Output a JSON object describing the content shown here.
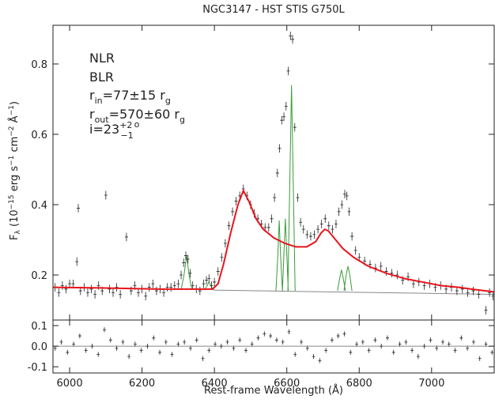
{
  "chart_data": [
    {
      "type": "line",
      "title": "NGC3147 - HST STIS G750L",
      "ylabel": {
        "parts": [
          "F",
          "λ",
          " (10",
          "−15",
          " erg s",
          "−1",
          " cm",
          "−2",
          " Å",
          "−1",
          ")"
        ]
      },
      "annotations": [
        {
          "parts": [
            "NLR"
          ],
          "color": "#1f9a1f"
        },
        {
          "parts": [
            "BLR"
          ],
          "color": "#e8141c"
        },
        {
          "parts": [
            "r",
            "in",
            "=77±15 r",
            "g"
          ],
          "color": "#e8141c"
        },
        {
          "parts": [
            "r",
            "out",
            "=570±60 r",
            "g"
          ],
          "color": "#e8141c"
        },
        {
          "parts": [
            "i=23",
            "+2",
            "−1",
            "o"
          ],
          "color": "#e8141c"
        }
      ],
      "xlim": [
        5954,
        7173
      ],
      "xticks": [
        6000,
        6200,
        6400,
        6600,
        6800,
        7000
      ],
      "show_xticklabels": false,
      "ylim": [
        0.072,
        0.91
      ],
      "yticks": [
        0.2,
        0.4,
        0.6,
        0.8
      ],
      "series": [
        {
          "color": "#888888",
          "x": [
            6397,
            7173
          ],
          "values": [
            0.157,
            0.145
          ]
        },
        {
          "color": "#3a9b3a",
          "x": [
            6308,
            6316,
            6323,
            6330,
            6338,
            null,
            6372,
            6379,
            6385,
            6391,
            6398,
            null,
            6570,
            6575,
            6579,
            6583,
            6588,
            null,
            6588,
            6592,
            6596,
            6600,
            6604,
            null,
            6603,
            6608,
            6613,
            6618,
            6623,
            null,
            6740,
            6746,
            6751,
            6756,
            6762,
            null,
            6758,
            6764,
            6769,
            6774,
            6780
          ],
          "values": [
            0.158,
            0.2,
            0.255,
            0.2,
            0.158,
            null,
            0.157,
            0.168,
            0.18,
            0.168,
            0.157,
            null,
            0.155,
            0.25,
            0.355,
            0.25,
            0.155,
            null,
            0.155,
            0.26,
            0.36,
            0.26,
            0.155,
            null,
            0.155,
            0.45,
            0.74,
            0.45,
            0.155,
            null,
            0.155,
            0.19,
            0.215,
            0.19,
            0.155,
            null,
            0.155,
            0.2,
            0.225,
            0.2,
            0.155
          ]
        },
        {
          "color": "#222222",
          "yerr": 0.012,
          "x": [
            5960,
            5970,
            5980,
            5990,
            6000,
            6010,
            6020,
            6024,
            6030,
            6040,
            6050,
            6060,
            6070,
            6080,
            6090,
            6100,
            6110,
            6120,
            6130,
            6140,
            6157,
            6170,
            6180,
            6190,
            6200,
            6210,
            6220,
            6230,
            6240,
            6250,
            6260,
            6270,
            6280,
            6290,
            6300,
            6308,
            6315,
            6321,
            6327,
            6333,
            6340,
            6350,
            6360,
            6370,
            6378,
            6385,
            6392,
            6400,
            6410,
            6420,
            6430,
            6440,
            6450,
            6460,
            6470,
            6480,
            6490,
            6500,
            6510,
            6520,
            6530,
            6540,
            6550,
            6558,
            6566,
            6574,
            6580,
            6586,
            6592,
            6598,
            6604,
            6610,
            6616,
            6622,
            6630,
            6638,
            6646,
            6656,
            6666,
            6676,
            6686,
            6696,
            6706,
            6716,
            6726,
            6736,
            6744,
            6752,
            6760,
            6766,
            6772,
            6780,
            6790,
            6800,
            6815,
            6830,
            6845,
            6860,
            6875,
            6890,
            6905,
            6920,
            6935,
            6950,
            6965,
            6980,
            6995,
            7010,
            7025,
            7040,
            7055,
            7070,
            7085,
            7100,
            7115,
            7130,
            7150,
            7160,
            7170
          ],
          "values": [
            0.165,
            0.15,
            0.17,
            0.16,
            0.175,
            0.175,
            0.238,
            0.39,
            0.155,
            0.165,
            0.15,
            0.16,
            0.145,
            0.17,
            0.155,
            0.427,
            0.16,
            0.15,
            0.165,
            0.145,
            0.308,
            0.155,
            0.17,
            0.15,
            0.16,
            0.14,
            0.165,
            0.175,
            0.155,
            0.16,
            0.15,
            0.165,
            0.165,
            0.17,
            0.175,
            0.2,
            0.235,
            0.255,
            0.245,
            0.205,
            0.17,
            0.16,
            0.155,
            0.175,
            0.185,
            0.19,
            0.17,
            0.18,
            0.21,
            0.25,
            0.29,
            0.34,
            0.38,
            0.41,
            0.425,
            0.445,
            0.425,
            0.4,
            0.375,
            0.36,
            0.345,
            0.335,
            0.335,
            0.36,
            0.42,
            0.49,
            0.56,
            0.64,
            0.65,
            0.68,
            0.78,
            0.88,
            0.87,
            0.62,
            0.42,
            0.35,
            0.33,
            0.315,
            0.31,
            0.315,
            0.33,
            0.345,
            0.36,
            0.34,
            0.33,
            0.345,
            0.38,
            0.4,
            0.43,
            0.425,
            0.38,
            0.31,
            0.27,
            0.25,
            0.24,
            0.23,
            0.22,
            0.225,
            0.21,
            0.205,
            0.2,
            0.185,
            0.195,
            0.175,
            0.18,
            0.17,
            0.175,
            0.165,
            0.17,
            0.16,
            0.165,
            0.155,
            0.16,
            0.15,
            0.155,
            0.145,
            0.1,
            0.15,
            0.14
          ]
        },
        {
          "color": "#e8141c",
          "x": [
            5955,
            6100,
            6250,
            6395,
            6410,
            6425,
            6445,
            6465,
            6480,
            6495,
            6515,
            6535,
            6565,
            6595,
            6625,
            6655,
            6680,
            6695,
            6705,
            6715,
            6735,
            6755,
            6785,
            6825,
            6875,
            6925,
            6975,
            7025,
            7075,
            7125,
            7173
          ],
          "values": [
            0.165,
            0.163,
            0.16,
            0.16,
            0.175,
            0.23,
            0.32,
            0.4,
            0.44,
            0.41,
            0.36,
            0.33,
            0.305,
            0.29,
            0.28,
            0.28,
            0.295,
            0.32,
            0.33,
            0.325,
            0.3,
            0.275,
            0.25,
            0.225,
            0.205,
            0.19,
            0.18,
            0.17,
            0.165,
            0.158,
            0.152
          ]
        }
      ]
    },
    {
      "type": "scatter",
      "xlabel": "Rest-frame Wavelength (Å)",
      "xlim": [
        5954,
        7173
      ],
      "xticks": [
        6000,
        6200,
        6400,
        6600,
        6800,
        7000
      ],
      "show_xticklabels": true,
      "ylim": [
        -0.13,
        0.127
      ],
      "yticks": [
        0.1,
        {
          "value": 0,
          "label": "0.0"
        },
        -0.1
      ],
      "hline": {
        "value": 0,
        "color": "#888888"
      },
      "series": [
        {
          "color": "#222222",
          "yerr": 0.012,
          "x": [
            5960,
            5977,
            5994,
            6011,
            6028,
            6045,
            6062,
            6079,
            6096,
            6113,
            6130,
            6147,
            6164,
            6181,
            6198,
            6215,
            6232,
            6249,
            6266,
            6283,
            6300,
            6317,
            6334,
            6351,
            6368,
            6385,
            6402,
            6419,
            6436,
            6453,
            6470,
            6487,
            6504,
            6521,
            6538,
            6555,
            6572,
            6589,
            6606,
            6623,
            6640,
            6657,
            6674,
            6691,
            6708,
            6725,
            6742,
            6759,
            6776,
            6793,
            6810,
            6827,
            6844,
            6861,
            6878,
            6895,
            6912,
            6929,
            6946,
            6963,
            6980,
            6997,
            7014,
            7031,
            7048,
            7065,
            7082,
            7099,
            7116,
            7133,
            7150,
            7167
          ],
          "values": [
            -0.01,
            0.02,
            -0.03,
            0.01,
            0.05,
            -0.02,
            0,
            -0.04,
            0.08,
            0.03,
            -0.01,
            0.02,
            -0.05,
            0.01,
            -0.02,
            0,
            0.04,
            -0.03,
            0.02,
            -0.04,
            0.01,
            0.02,
            -0.01,
            0.03,
            -0.06,
            -0.02,
            0.01,
            0,
            0.02,
            -0.01,
            0.03,
            -0.02,
            0.01,
            0.04,
            0.06,
            0.05,
            0.03,
            0.02,
            0.07,
            -0.04,
            0.02,
            -0.01,
            -0.05,
            -0.07,
            -0.02,
            0.03,
            0.05,
            0.06,
            -0.03,
            0.01,
            0.02,
            -0.02,
            0.03,
            0,
            0.04,
            -0.03,
            0.01,
            0.02,
            -0.02,
            -0.05,
            0,
            0.03,
            -0.01,
            0.02,
            0.01,
            -0.02,
            0.04,
            -0.01,
            0.02,
            -0.06,
            0.01,
            -0.03
          ]
        }
      ]
    }
  ]
}
